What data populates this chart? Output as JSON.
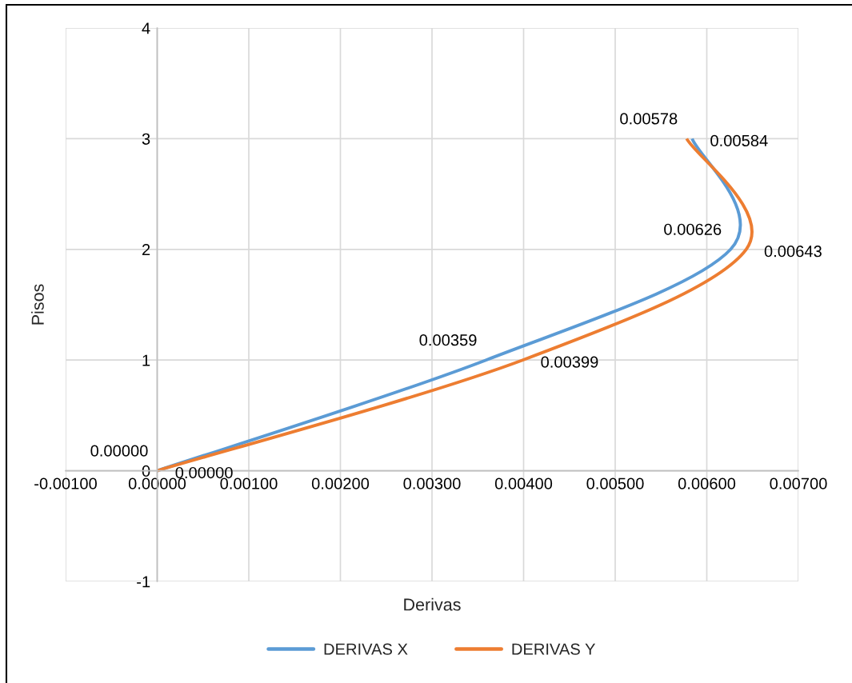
{
  "chart_data": {
    "type": "line",
    "xlabel": "Derivas",
    "ylabel": "Pisos",
    "series": [
      {
        "name": "DERIVAS X",
        "color": "#5b9bd5",
        "x": [
          0,
          0.00359,
          0.00626,
          0.00584
        ],
        "values": [
          0,
          1,
          2,
          3
        ]
      },
      {
        "name": "DERIVAS Y",
        "color": "#ed7d31",
        "x": [
          0,
          0.00399,
          0.00643,
          0.00578
        ],
        "values": [
          0,
          1,
          2,
          3
        ]
      }
    ],
    "annotations": [
      {
        "text": "0.00000",
        "x": 0,
        "y": 0
      },
      {
        "text": "0.00359",
        "x": 0.00359,
        "y": 1
      },
      {
        "text": "0.00626",
        "x": 0.00626,
        "y": 2
      },
      {
        "text": "0.00584",
        "x": 0.00584,
        "y": 3
      },
      {
        "text": "0.00000",
        "x": 0,
        "y": 0
      },
      {
        "text": "0.00399",
        "x": 0.00399,
        "y": 1
      },
      {
        "text": "0.00643",
        "x": 0.00643,
        "y": 2
      },
      {
        "text": "0.00578",
        "x": 0.00578,
        "y": 3
      }
    ],
    "xlim": [
      -0.001,
      0.007
    ],
    "xticks": [
      {
        "value": -0.001,
        "label": "-0.00100"
      },
      {
        "value": 0,
        "label": "0.00000"
      },
      {
        "value": 0.001,
        "label": "0.00100"
      },
      {
        "value": 0.002,
        "label": "0.00200"
      },
      {
        "value": 0.003,
        "label": "0.00300"
      },
      {
        "value": 0.004,
        "label": "0.00400"
      },
      {
        "value": 0.005,
        "label": "0.00500"
      },
      {
        "value": 0.006,
        "label": "0.00600"
      },
      {
        "value": 0.007,
        "label": "0.00700"
      }
    ],
    "ylim": [
      -1,
      4
    ],
    "yticks": [
      -1,
      0,
      1,
      2,
      3,
      4
    ],
    "grid": true,
    "legend": "bottom",
    "line_style": "solid"
  }
}
